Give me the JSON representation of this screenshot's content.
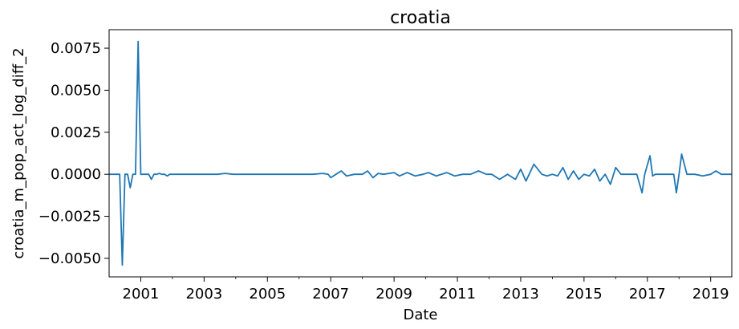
{
  "chart_data": {
    "type": "line",
    "title": "croatia",
    "xlabel": "Date",
    "ylabel": "croatia_m_pop_act_log_diff_2",
    "xlim": [
      "2000-01",
      "2019-09"
    ],
    "ylim": [
      -0.0061,
      0.0086
    ],
    "grid": false,
    "line_color": "#1f77b4",
    "xticks_major": [
      "2001",
      "2003",
      "2005",
      "2007",
      "2009",
      "2011",
      "2013",
      "2015",
      "2017",
      "2019"
    ],
    "xticks_minor": [
      "2002",
      "2004",
      "2006",
      "2008",
      "2010",
      "2012",
      "2014",
      "2016",
      "2018"
    ],
    "yticks": [
      {
        "value": -0.005,
        "label": "−0.0050"
      },
      {
        "value": -0.0025,
        "label": "−0.0025"
      },
      {
        "value": 0.0,
        "label": "0.0000"
      },
      {
        "value": 0.0025,
        "label": "0.0025"
      },
      {
        "value": 0.005,
        "label": "0.0050"
      },
      {
        "value": 0.0075,
        "label": "0.0075"
      }
    ],
    "series": [
      {
        "x": [
          "2000-01",
          "2000-02",
          "2000-03",
          "2000-04",
          "2000-05",
          "2000-06",
          "2000-07",
          "2000-08",
          "2000-09",
          "2000-10",
          "2000-11",
          "2000-12",
          "2001-01",
          "2001-02",
          "2001-03",
          "2001-04",
          "2001-05",
          "2001-06",
          "2001-07",
          "2001-08",
          "2001-09",
          "2001-10",
          "2001-11",
          "2001-12",
          "2002-01",
          "2002-02",
          "2003-06",
          "2003-09",
          "2003-12",
          "2004-03",
          "2005-06",
          "2006-06",
          "2006-10",
          "2006-12",
          "2007-01",
          "2007-03",
          "2007-05",
          "2007-07",
          "2007-10",
          "2008-01",
          "2008-03",
          "2008-05",
          "2008-07",
          "2008-09",
          "2009-01",
          "2009-03",
          "2009-06",
          "2009-09",
          "2009-12",
          "2010-02",
          "2010-05",
          "2010-09",
          "2010-12",
          "2011-03",
          "2011-06",
          "2011-09",
          "2011-12",
          "2012-02",
          "2012-05",
          "2012-08",
          "2012-11",
          "2013-01",
          "2013-03",
          "2013-06",
          "2013-09",
          "2013-11",
          "2014-01",
          "2014-03",
          "2014-05",
          "2014-07",
          "2014-09",
          "2014-11",
          "2015-01",
          "2015-03",
          "2015-05",
          "2015-07",
          "2015-09",
          "2015-11",
          "2016-01",
          "2016-03",
          "2016-06",
          "2016-09",
          "2016-11",
          "2016-12",
          "2017-02",
          "2017-03",
          "2017-04",
          "2017-06",
          "2017-09",
          "2017-11",
          "2017-12",
          "2018-01",
          "2018-02",
          "2018-04",
          "2018-07",
          "2018-10",
          "2019-01",
          "2019-03",
          "2019-05",
          "2019-09"
        ],
        "y": [
          0.0,
          0.0,
          0.0,
          0.0,
          0.0,
          -0.0054,
          0.0,
          0.0,
          -0.0008,
          0.0,
          0.0,
          0.0079,
          0.0,
          0.0,
          0.0,
          0.0,
          -0.0003,
          0.0,
          0.0,
          5e-05,
          0.0,
          0.0,
          -0.0001,
          0.0,
          0.0,
          0.0,
          0.0,
          5e-05,
          0.0,
          0.0,
          0.0,
          0.0,
          5e-05,
          0.0,
          -0.0002,
          0.0,
          0.0002,
          -0.0001,
          0.0,
          0.0,
          0.0002,
          -0.0002,
          5e-05,
          0.0,
          0.0001,
          -0.0001,
          0.0001,
          -0.0001,
          0.0,
          0.0001,
          -0.0001,
          0.0001,
          -0.0001,
          0.0,
          0.0,
          0.0002,
          0.0,
          0.0,
          -0.0003,
          0.0,
          -0.0003,
          0.0003,
          -0.0004,
          0.0006,
          0.0,
          -0.0001,
          0.0,
          -0.0001,
          0.0004,
          -0.0003,
          0.0002,
          -0.0003,
          0.0,
          -0.0001,
          0.0003,
          -0.0004,
          0.0,
          -0.0006,
          0.0004,
          0.0,
          0.0,
          0.0,
          -0.0011,
          0.0,
          0.0011,
          -0.0001,
          0.0,
          0.0,
          0.0,
          0.0,
          -0.0011,
          0.0,
          0.0012,
          0.0,
          0.0,
          -0.0001,
          0.0,
          0.0002,
          0.0,
          0.0
        ]
      }
    ]
  }
}
